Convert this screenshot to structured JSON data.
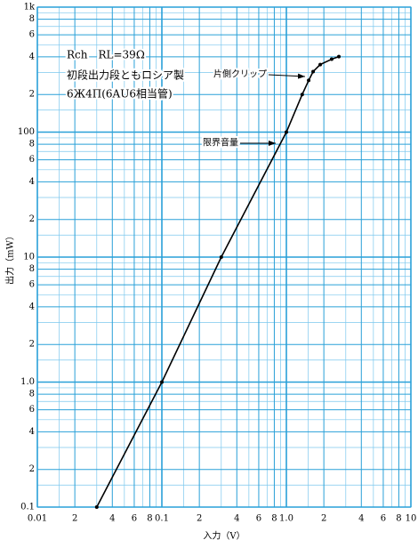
{
  "chart_data": {
    "type": "line",
    "x_label": "入力（V）",
    "y_label": "出力（mW）",
    "xscale": "log",
    "yscale": "log",
    "grid": true,
    "xlim": [
      0.01,
      10
    ],
    "ylim": [
      0.1,
      1000
    ],
    "xticks": [
      0.01,
      {
        "value": 0.02,
        "label": "2"
      },
      {
        "value": 0.04,
        "label": "4"
      },
      {
        "value": 0.06,
        "label": "6"
      },
      {
        "value": 0.08,
        "label": "8"
      },
      0.1,
      {
        "value": 0.2,
        "label": "2"
      },
      {
        "value": 0.4,
        "label": "4"
      },
      {
        "value": 0.6,
        "label": "6"
      },
      {
        "value": 0.8,
        "label": "8"
      },
      {
        "value": 1,
        "label": "1.0"
      },
      2,
      4,
      6,
      8,
      10
    ],
    "yticks": [
      0.1,
      {
        "value": 0.2,
        "label": "2"
      },
      {
        "value": 0.4,
        "label": "4"
      },
      {
        "value": 0.6,
        "label": "6"
      },
      {
        "value": 0.8,
        "label": "8"
      },
      {
        "value": 1,
        "label": "1.0"
      },
      2,
      4,
      6,
      8,
      10,
      {
        "value": 20,
        "label": "2"
      },
      {
        "value": 40,
        "label": "4"
      },
      {
        "value": 60,
        "label": "6"
      },
      {
        "value": 80,
        "label": "8"
      },
      100,
      {
        "value": 200,
        "label": "2"
      },
      {
        "value": 400,
        "label": "4"
      },
      {
        "value": 600,
        "label": "6"
      },
      {
        "value": 800,
        "label": "8"
      },
      {
        "value": 1000,
        "label": "1k"
      }
    ],
    "xminor": [
      0.015,
      0.03,
      0.05,
      0.07,
      0.09,
      0.15,
      0.3,
      0.5,
      0.7,
      0.9,
      1.5,
      3,
      5,
      7,
      9
    ],
    "yminor": [
      0.15,
      0.3,
      0.5,
      0.7,
      0.9,
      1.5,
      3,
      5,
      7,
      9,
      15,
      30,
      50,
      70,
      90,
      150,
      300,
      500,
      700,
      900
    ],
    "x": [
      0.03,
      0.1,
      0.3,
      1.0,
      1.34,
      1.51,
      1.64,
      1.87,
      2.31,
      2.64
    ],
    "series": [
      {
        "color": "#000000",
        "values": [
          0.1,
          1.0,
          10,
          100,
          200,
          259,
          305,
          347,
          383,
          402
        ]
      }
    ],
    "annotations": [
      "Rch　RL=39Ω",
      "初段出力段ともロシア製",
      "6Ж4П(6AU6相当管)",
      "片側クリップ",
      "限界音量"
    ]
  }
}
